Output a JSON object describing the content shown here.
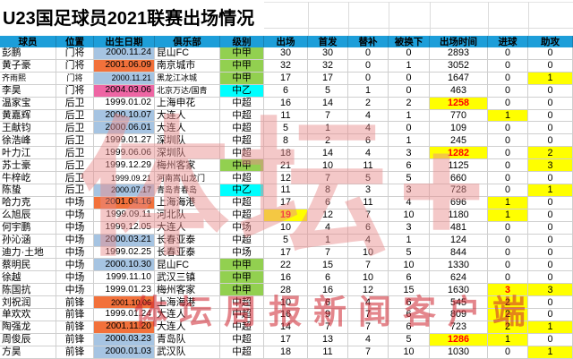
{
  "title": "U23国足球员2021联赛出场情况",
  "colors": {
    "header-bg": "#1d9ed9",
    "bg-blue": "#a6c4e2",
    "bg-orange": "#f2713b",
    "bg-pink": "#ee66a4",
    "bg-green": "#92d050",
    "bg-cyan": "#00ffff",
    "bg-yellow": "#ffff00",
    "txt-red": "#ff0000",
    "grid-line": "#cfcfcf",
    "wm-pink": "rgba(232,140,140,0.48)",
    "wm-red": "rgba(205,35,45,0.55)"
  },
  "watermark": {
    "big": "体坛+",
    "line": "体坛周报新闻客户端"
  },
  "table": {
    "headers": [
      "球员",
      "位置",
      "出生日期",
      "俱乐部",
      "级别",
      "出场",
      "首发",
      "替补",
      "被换下",
      "出场时间",
      "进球",
      "助攻"
    ],
    "col_names": [
      "player",
      "position",
      "dob",
      "club",
      "level",
      "apps",
      "starts",
      "sub",
      "subbed-off",
      "minutes",
      "goals",
      "assists"
    ],
    "rows": [
      {
        "c": [
          "彭鹏",
          "门将",
          "2000.11.24",
          "昆山FC",
          "中甲",
          "30",
          "30",
          "0",
          "0",
          "2893",
          "0",
          "0"
        ],
        "bg": {
          "2": "blue",
          "4": "green"
        },
        "red": [],
        "sm": []
      },
      {
        "c": [
          "黄子豪",
          "门将",
          "2001.06.09",
          "南京城市",
          "中甲",
          "32",
          "32",
          "0",
          "1",
          "3052",
          "0",
          "0"
        ],
        "bg": {
          "2": "orange",
          "4": "green"
        },
        "red": [],
        "sm": []
      },
      {
        "c": [
          "齐雨熙",
          "门将",
          "2000.11.21",
          "黑龙江冰城",
          "中甲",
          "17",
          "17",
          "0",
          "0",
          "1647",
          "0",
          "1"
        ],
        "bg": {
          "2": "blue",
          "4": "green",
          "11": "yellow"
        },
        "red": [],
        "sm": [
          0,
          1,
          2,
          3
        ]
      },
      {
        "c": [
          "李昊",
          "门将",
          "2004.03.06",
          "北京万达/国青",
          "中乙",
          "6",
          "5",
          "1",
          "0",
          "463",
          "0",
          "0"
        ],
        "bg": {
          "2": "pink",
          "4": "cyan"
        },
        "red": [],
        "sm": [
          3
        ]
      },
      {
        "c": [
          "温家宝",
          "后卫",
          "1999.01.02",
          "上海申花",
          "中超",
          "16",
          "14",
          "2",
          "2",
          "1258",
          "0",
          "0"
        ],
        "bg": {
          "9": "yellow"
        },
        "red": [
          9
        ],
        "sm": []
      },
      {
        "c": [
          "黄嘉辉",
          "后卫",
          "2000.10.07",
          "大连人",
          "中超",
          "11",
          "7",
          "4",
          "1",
          "770",
          "1",
          "0"
        ],
        "bg": {
          "2": "blue",
          "10": "yellow"
        },
        "red": [],
        "sm": []
      },
      {
        "c": [
          "王献钧",
          "后卫",
          "2000.06.01",
          "大连人",
          "中超",
          "5",
          "1",
          "4",
          "0",
          "109",
          "0",
          "0"
        ],
        "bg": {
          "2": "blue"
        },
        "red": [],
        "sm": []
      },
      {
        "c": [
          "徐浩峰",
          "后卫",
          "1999.01.27",
          "深圳队",
          "中超",
          "8",
          "2",
          "6",
          "1",
          "245",
          "0",
          "0"
        ],
        "bg": {},
        "red": [],
        "sm": []
      },
      {
        "c": [
          "叶力江",
          "后卫",
          "1999.06.06",
          "深圳队",
          "中超",
          "18",
          "14",
          "4",
          "3",
          "1282",
          "0",
          "2"
        ],
        "bg": {
          "9": "yellow",
          "11": "yellow"
        },
        "red": [
          9
        ],
        "sm": []
      },
      {
        "c": [
          "苏士豪",
          "后卫",
          "1999.12.29",
          "梅州客家",
          "中甲",
          "21",
          "10",
          "11",
          "6",
          "1125",
          "0",
          "3"
        ],
        "bg": {
          "4": "green",
          "11": "yellow"
        },
        "red": [],
        "sm": []
      },
      {
        "c": [
          "牛梓屹",
          "后卫",
          "1999.09.21",
          "河南嵩山龙门",
          "中超",
          "12",
          "7",
          "5",
          "5",
          "660",
          "0",
          "0"
        ],
        "bg": {},
        "red": [],
        "sm": [
          2,
          3
        ]
      },
      {
        "c": [
          "陈蛰",
          "后卫",
          "2000.07.17",
          "青岛青春岛",
          "中乙",
          "11",
          "8",
          "3",
          "3",
          "728",
          "0",
          "1"
        ],
        "bg": {
          "2": "blue",
          "4": "cyan",
          "11": "yellow"
        },
        "red": [],
        "sm": [
          2,
          3
        ]
      },
      {
        "c": [
          "哈力克",
          "中场",
          "2001.04.16",
          "上海海港",
          "中超",
          "17",
          "6",
          "11",
          "4",
          "696",
          "1",
          "0"
        ],
        "bg": {
          "2": "orange",
          "10": "yellow"
        },
        "red": [],
        "sm": []
      },
      {
        "c": [
          "么旭辰",
          "中场",
          "1999.09.11",
          "河北队",
          "中超",
          "19",
          "12",
          "7",
          "10",
          "1180",
          "1",
          "0"
        ],
        "bg": {
          "5": "yellow",
          "10": "yellow"
        },
        "red": [
          5
        ],
        "sm": []
      },
      {
        "c": [
          "何宇鹏",
          "中场",
          "1999.12.05",
          "大连人",
          "中场",
          "10",
          "4",
          "6",
          "3",
          "481",
          "0",
          "0"
        ],
        "bg": {},
        "red": [],
        "sm": []
      },
      {
        "c": [
          "孙沁涵",
          "中场",
          "2000.03.21",
          "长春亚泰",
          "中超",
          "5",
          "1",
          "4",
          "1",
          "124",
          "0",
          "0"
        ],
        "bg": {
          "2": "blue"
        },
        "red": [],
        "sm": []
      },
      {
        "c": [
          "迪力·土地",
          "中场",
          "1999.02.25",
          "长春亚泰",
          "中场",
          "17",
          "7",
          "10",
          "5",
          "844",
          "0",
          "0"
        ],
        "bg": {},
        "red": [],
        "sm": []
      },
      {
        "c": [
          "蔡明民",
          "中场",
          "2000.10.30",
          "昆山FC",
          "中甲",
          "22",
          "15",
          "7",
          "10",
          "1330",
          "0",
          "0"
        ],
        "bg": {
          "2": "blue",
          "4": "green"
        },
        "red": [],
        "sm": []
      },
      {
        "c": [
          "徐越",
          "中场",
          "1999.11.10",
          "武汉三镇",
          "中甲",
          "16",
          "6",
          "10",
          "6",
          "624",
          "0",
          "0"
        ],
        "bg": {
          "4": "green"
        },
        "red": [],
        "sm": []
      },
      {
        "c": [
          "陈国抗",
          "中场",
          "1999.01.23",
          "梅州客家",
          "中甲",
          "28",
          "16",
          "12",
          "15",
          "1630",
          "3",
          "3"
        ],
        "bg": {
          "4": "green",
          "10": "yellow",
          "11": "yellow"
        },
        "red": [
          10
        ],
        "sm": []
      },
      {
        "c": [
          "刘祝润",
          "前锋",
          "2001.10.06",
          "上海海港",
          "中超",
          "10",
          "6",
          "4",
          "6",
          "545",
          "2",
          "0"
        ],
        "bg": {
          "2": "orange",
          "10": "yellow"
        },
        "red": [],
        "sm": [
          2
        ]
      },
      {
        "c": [
          "单欢欢",
          "前锋",
          "1999.01.24",
          "大连人",
          "中超",
          "16",
          "9",
          "7",
          "6",
          "809",
          "2",
          "0"
        ],
        "bg": {
          "10": "yellow"
        },
        "red": [],
        "sm": []
      },
      {
        "c": [
          "陶强龙",
          "前锋",
          "2001.11.20",
          "大连人",
          "中超",
          "14",
          "7",
          "7",
          "6",
          "723",
          "2",
          "1"
        ],
        "bg": {
          "2": "orange",
          "10": "yellow",
          "11": "yellow"
        },
        "red": [],
        "sm": []
      },
      {
        "c": [
          "周俊辰",
          "前锋",
          "2000.03.23",
          "青岛队",
          "中超",
          "17",
          "13",
          "4",
          "5",
          "1286",
          "1",
          "0"
        ],
        "bg": {
          "2": "blue",
          "9": "yellow",
          "10": "yellow"
        },
        "red": [
          9
        ],
        "sm": []
      },
      {
        "c": [
          "方昊",
          "前锋",
          "2000.01.03",
          "武汉队",
          "中超",
          "18",
          "11",
          "7",
          "10",
          "1030",
          "0",
          "1"
        ],
        "bg": {
          "2": "blue",
          "11": "yellow"
        },
        "red": [],
        "sm": []
      }
    ]
  }
}
